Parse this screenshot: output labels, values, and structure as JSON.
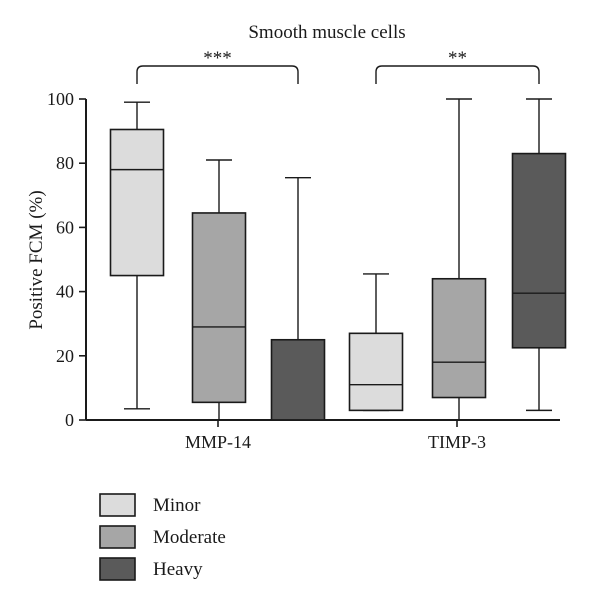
{
  "chart_data": {
    "type": "boxplot",
    "title": "Smooth muscle cells",
    "ylabel": "Positive FCM (%)",
    "xlabel": "",
    "ylim": [
      0,
      100
    ],
    "yticks": [
      0,
      20,
      40,
      60,
      80,
      100
    ],
    "categories": [
      "MMP-14",
      "TIMP-3"
    ],
    "series": [
      {
        "name": "Minor",
        "color": "#dcdcdc",
        "boxes": [
          {
            "min": 3.5,
            "q1": 45,
            "median": 78,
            "q3": 90.5,
            "max": 99
          },
          {
            "min": 3,
            "q1": 3,
            "median": 11,
            "q3": 27,
            "max": 45.5
          }
        ]
      },
      {
        "name": "Moderate",
        "color": "#a6a6a6",
        "boxes": [
          {
            "min": 0,
            "q1": 5.5,
            "median": 29,
            "q3": 64.5,
            "max": 81
          },
          {
            "min": 0,
            "q1": 7,
            "median": 18,
            "q3": 44,
            "max": 100
          }
        ]
      },
      {
        "name": "Heavy",
        "color": "#5a5a5a",
        "boxes": [
          {
            "min": 0,
            "q1": 0,
            "median": 0,
            "q3": 25,
            "max": 75.5
          },
          {
            "min": 3,
            "q1": 22.5,
            "median": 39.5,
            "q3": 83,
            "max": 100
          }
        ]
      }
    ],
    "significance": [
      {
        "group": "MMP-14",
        "label": "***"
      },
      {
        "group": "TIMP-3",
        "label": "**"
      }
    ],
    "legend": {
      "position": "bottom-left",
      "entries": [
        "Minor",
        "Moderate",
        "Heavy"
      ]
    }
  }
}
